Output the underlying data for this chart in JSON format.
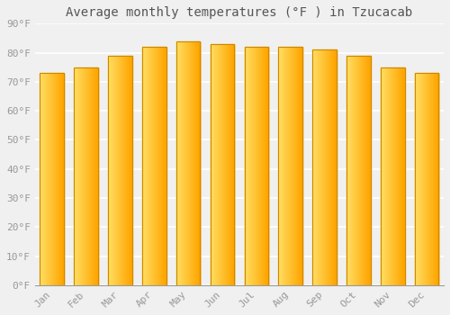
{
  "title": "Average monthly temperatures (°F ) in Tzucacab",
  "months": [
    "Jan",
    "Feb",
    "Mar",
    "Apr",
    "May",
    "Jun",
    "Jul",
    "Aug",
    "Sep",
    "Oct",
    "Nov",
    "Dec"
  ],
  "values": [
    73,
    75,
    79,
    82,
    84,
    83,
    82,
    82,
    81,
    79,
    75,
    73
  ],
  "bar_color_left": "#FFE066",
  "bar_color_right": "#FFA500",
  "bar_border_color": "#CC8800",
  "ylim": [
    0,
    90
  ],
  "yticks": [
    0,
    10,
    20,
    30,
    40,
    50,
    60,
    70,
    80,
    90
  ],
  "ytick_labels": [
    "0°F",
    "10°F",
    "20°F",
    "30°F",
    "40°F",
    "50°F",
    "60°F",
    "70°F",
    "80°F",
    "90°F"
  ],
  "background_color": "#f0f0f0",
  "grid_color": "#ffffff",
  "title_fontsize": 10,
  "tick_fontsize": 8,
  "tick_color": "#999999",
  "font_family": "monospace"
}
